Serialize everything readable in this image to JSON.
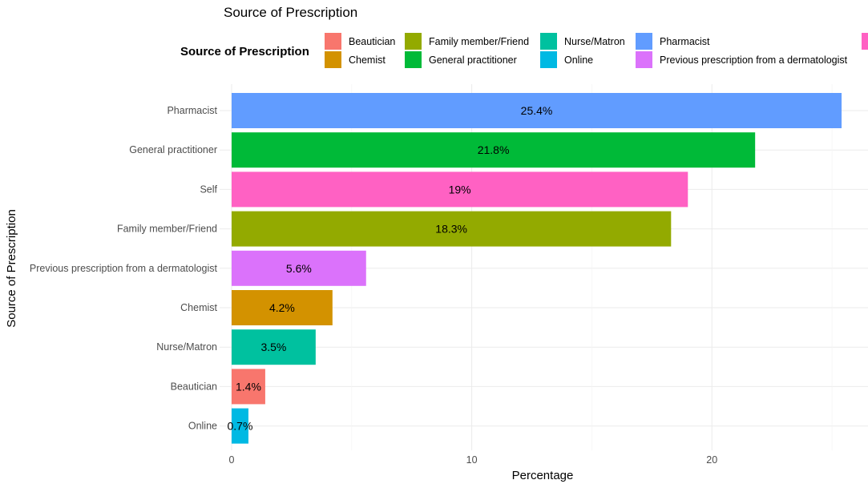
{
  "chart_data": {
    "type": "bar",
    "orientation": "horizontal",
    "title": "Source of Prescription",
    "xlabel": "Percentage",
    "ylabel": "Source of Prescription",
    "xlim": [
      -0.5,
      26.5
    ],
    "x_ticks": [
      0,
      10,
      20
    ],
    "grid": true,
    "legend": {
      "title": "Source of Prescription",
      "position": "top",
      "entries": [
        {
          "label": "Beautician",
          "color": "#F8766D"
        },
        {
          "label": "Chemist",
          "color": "#D39200"
        },
        {
          "label": "Family member/Friend",
          "color": "#93AA00"
        },
        {
          "label": "General practitioner",
          "color": "#00BA38"
        },
        {
          "label": "Nurse/Matron",
          "color": "#00C19F"
        },
        {
          "label": "Online",
          "color": "#00B9E3"
        },
        {
          "label": "Pharmacist",
          "color": "#619CFF"
        },
        {
          "label": "Previous prescription from a dermatologist",
          "color": "#DB72FB"
        },
        {
          "label": "Self",
          "color": "#FF61C3"
        }
      ]
    },
    "categories": [
      "Pharmacist",
      "General practitioner",
      "Self",
      "Family member/Friend",
      "Previous prescription from a dermatologist",
      "Chemist",
      "Nurse/Matron",
      "Beautician",
      "Online"
    ],
    "values": [
      25.4,
      21.8,
      19.0,
      18.3,
      5.6,
      4.2,
      3.5,
      1.4,
      0.7
    ],
    "data_labels": [
      "25.4%",
      "21.8%",
      "19%",
      "18.3%",
      "5.6%",
      "4.2%",
      "3.5%",
      "1.4%",
      "0.7%"
    ],
    "colors": [
      "#619CFF",
      "#00BA38",
      "#FF61C3",
      "#93AA00",
      "#DB72FB",
      "#D39200",
      "#00C19F",
      "#F8766D",
      "#00B9E3"
    ]
  }
}
